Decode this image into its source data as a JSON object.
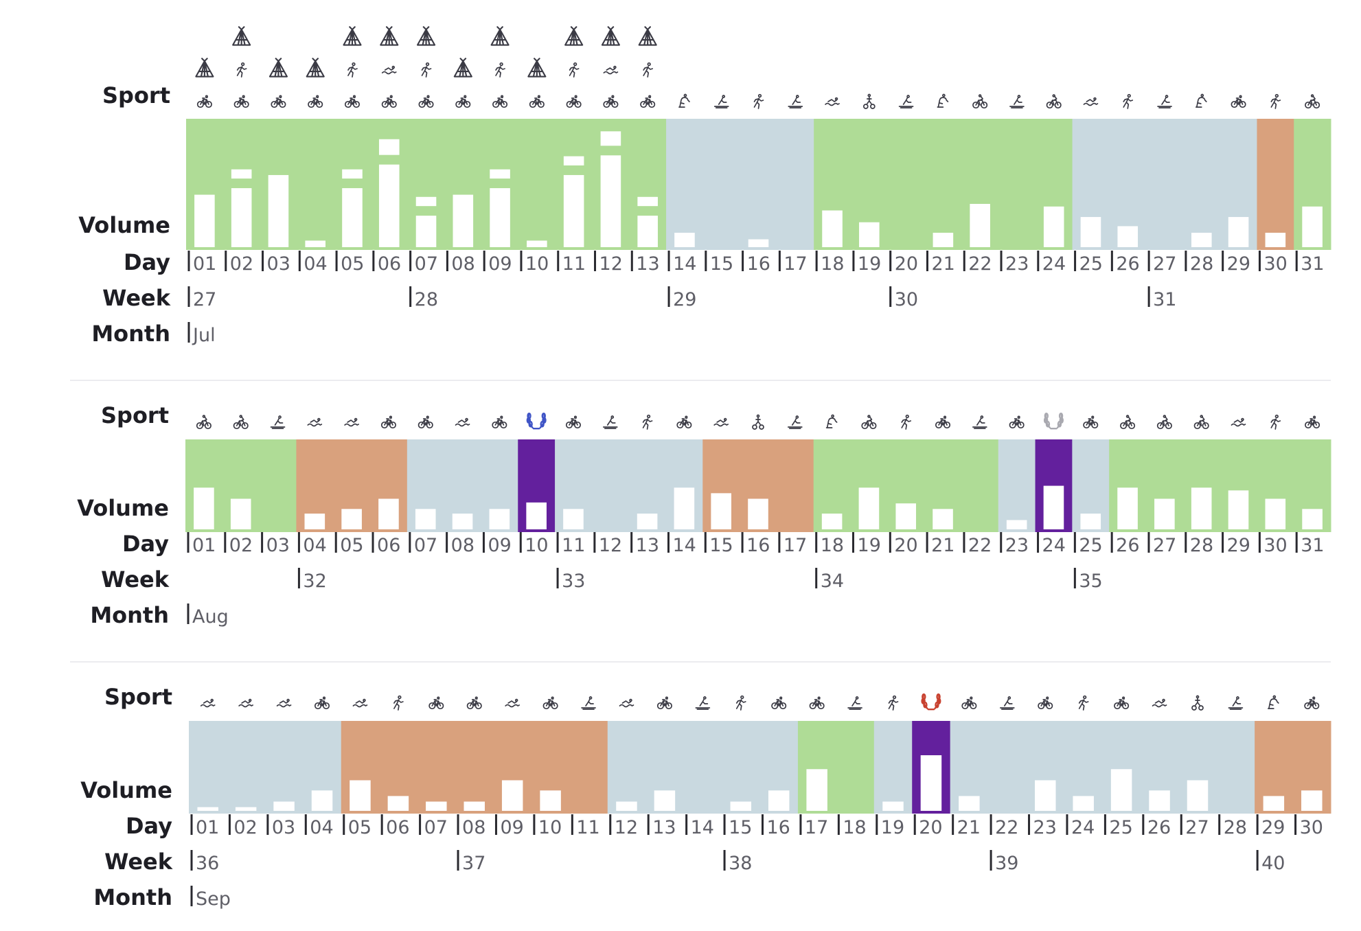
{
  "labels": {
    "sport": "Sport",
    "volume": "Volume",
    "day": "Day",
    "week": "Week",
    "month": "Month"
  },
  "colors": {
    "green": "#afdc96",
    "blue": "#c9d9e0",
    "orange": "#d9a17d",
    "purple": "#63209d",
    "bar": "#ffffff",
    "ink": "#1e1e24",
    "tick": "#5e5e66"
  },
  "chart_data": [
    {
      "type": "bar",
      "month": "Jul",
      "days": [
        "01",
        "02",
        "03",
        "04",
        "05",
        "06",
        "07",
        "08",
        "09",
        "10",
        "11",
        "12",
        "13",
        "14",
        "15",
        "16",
        "17",
        "18",
        "19",
        "20",
        "21",
        "22",
        "23",
        "24",
        "25",
        "26",
        "27",
        "28",
        "29",
        "30",
        "31"
      ],
      "weeks": [
        {
          "label": "27",
          "day": 1
        },
        {
          "label": "28",
          "day": 7
        },
        {
          "label": "29",
          "day": 14
        },
        {
          "label": "30",
          "day": 20
        },
        {
          "label": "31",
          "day": 27
        }
      ],
      "phases": [
        {
          "start": 1,
          "end": 13,
          "color": "green"
        },
        {
          "start": 14,
          "end": 17,
          "color": "blue"
        },
        {
          "start": 18,
          "end": 24,
          "color": "green"
        },
        {
          "start": 25,
          "end": 29,
          "color": "blue"
        },
        {
          "start": 30,
          "end": 30,
          "color": "orange"
        },
        {
          "start": 31,
          "end": 31,
          "color": "green"
        }
      ],
      "highlight_days": [],
      "sports": [
        [
          "bike-icon",
          "camp-icon"
        ],
        [
          "bike-icon",
          "run-icon",
          "camp-icon"
        ],
        [
          "bike-icon",
          "camp-icon"
        ],
        [
          "bike-icon",
          "camp-icon"
        ],
        [
          "bike-icon",
          "run-icon",
          "camp-icon"
        ],
        [
          "bike-icon",
          "swim-icon",
          "camp-icon"
        ],
        [
          "bike-icon",
          "run-icon",
          "camp-icon"
        ],
        [
          "bike-icon",
          "camp-icon"
        ],
        [
          "bike-icon",
          "run-icon",
          "camp-icon"
        ],
        [
          "bike-icon",
          "camp-icon"
        ],
        [
          "bike-icon",
          "run-icon",
          "camp-icon"
        ],
        [
          "bike-icon",
          "swim-icon",
          "camp-icon"
        ],
        [
          "bike-icon",
          "run-icon",
          "camp-icon"
        ],
        [
          "strength-icon"
        ],
        [
          "rowing-icon"
        ],
        [
          "run-icon"
        ],
        [
          "rowing-icon"
        ],
        [
          "swim-icon"
        ],
        [
          "walk-icon"
        ],
        [
          "rowing-icon"
        ],
        [
          "strength-icon"
        ],
        [
          "mtb-icon"
        ],
        [
          "rowing-icon"
        ],
        [
          "mtb-icon"
        ],
        [
          "swim-icon"
        ],
        [
          "run-icon"
        ],
        [
          "rowing-icon"
        ],
        [
          "strength-icon"
        ],
        [
          "bike-icon"
        ],
        [
          "run-icon"
        ],
        [
          "mtb-icon"
        ]
      ],
      "values": [
        [
          0.4
        ],
        [
          0.45,
          0.07
        ],
        [
          0.55
        ],
        [
          0.05
        ],
        [
          0.45,
          0.07
        ],
        [
          0.63,
          0.12
        ],
        [
          0.24,
          0.07
        ],
        [
          0.4
        ],
        [
          0.45,
          0.07
        ],
        [
          0.05
        ],
        [
          0.55,
          0.07
        ],
        [
          0.7,
          0.11
        ],
        [
          0.24,
          0.07
        ],
        [
          0.11
        ],
        [
          0
        ],
        [
          0.06
        ],
        [
          0
        ],
        [
          0.28
        ],
        [
          0.19
        ],
        [
          0
        ],
        [
          0.11
        ],
        [
          0.33
        ],
        [
          0
        ],
        [
          0.31
        ],
        [
          0.23
        ],
        [
          0.16
        ],
        [
          0
        ],
        [
          0.11
        ],
        [
          0.23
        ],
        [
          0.11
        ],
        [
          0.31
        ]
      ]
    },
    {
      "type": "bar",
      "month": "Aug",
      "days": [
        "01",
        "02",
        "03",
        "04",
        "05",
        "06",
        "07",
        "08",
        "09",
        "10",
        "11",
        "12",
        "13",
        "14",
        "15",
        "16",
        "17",
        "18",
        "19",
        "20",
        "21",
        "22",
        "23",
        "24",
        "25",
        "26",
        "27",
        "28",
        "29",
        "30",
        "31"
      ],
      "weeks": [
        {
          "label": "32",
          "day": 4
        },
        {
          "label": "33",
          "day": 11
        },
        {
          "label": "34",
          "day": 18
        },
        {
          "label": "35",
          "day": 25
        }
      ],
      "phases": [
        {
          "start": 1,
          "end": 3,
          "color": "green"
        },
        {
          "start": 4,
          "end": 6,
          "color": "orange"
        },
        {
          "start": 7,
          "end": 9,
          "color": "blue"
        },
        {
          "start": 10,
          "end": 10,
          "color": "purple"
        },
        {
          "start": 11,
          "end": 14,
          "color": "blue"
        },
        {
          "start": 15,
          "end": 17,
          "color": "orange"
        },
        {
          "start": 18,
          "end": 22,
          "color": "green"
        },
        {
          "start": 23,
          "end": 23,
          "color": "blue"
        },
        {
          "start": 24,
          "end": 24,
          "color": "purple"
        },
        {
          "start": 25,
          "end": 25,
          "color": "blue"
        },
        {
          "start": 26,
          "end": 31,
          "color": "green"
        }
      ],
      "highlight_days": [
        10,
        24
      ],
      "sports": [
        [
          "mtb-icon"
        ],
        [
          "mtb-icon"
        ],
        [
          "rowing-icon"
        ],
        [
          "swim-icon"
        ],
        [
          "swim-icon"
        ],
        [
          "bike-icon"
        ],
        [
          "bike-icon"
        ],
        [
          "swim-icon"
        ],
        [
          "bike-icon"
        ],
        [
          "laurel-gold-icon"
        ],
        [
          "bike-icon"
        ],
        [
          "rowing-icon"
        ],
        [
          "run-icon"
        ],
        [
          "bike-icon"
        ],
        [
          "swim-icon"
        ],
        [
          "walk-icon"
        ],
        [
          "rowing-icon"
        ],
        [
          "strength-icon"
        ],
        [
          "mtb-icon"
        ],
        [
          "run-icon"
        ],
        [
          "bike-icon"
        ],
        [
          "rowing-icon"
        ],
        [
          "bike-icon"
        ],
        [
          "laurel-silver-icon"
        ],
        [
          "bike-icon"
        ],
        [
          "mtb-icon"
        ],
        [
          "mtb-icon"
        ],
        [
          "mtb-icon"
        ],
        [
          "swim-icon"
        ],
        [
          "run-icon"
        ],
        [
          "bike-icon"
        ]
      ],
      "values": [
        [
          0.45
        ],
        [
          0.33
        ],
        [
          0
        ],
        [
          0.17
        ],
        [
          0.22
        ],
        [
          0.33
        ],
        [
          0.22
        ],
        [
          0.17
        ],
        [
          0.22
        ],
        [
          0.29
        ],
        [
          0.22
        ],
        [
          0
        ],
        [
          0.17
        ],
        [
          0.45
        ],
        [
          0.39
        ],
        [
          0.33
        ],
        [
          0
        ],
        [
          0.17
        ],
        [
          0.45
        ],
        [
          0.28
        ],
        [
          0.22
        ],
        [
          0
        ],
        [
          0.1
        ],
        [
          0.47
        ],
        [
          0.17
        ],
        [
          0.45
        ],
        [
          0.33
        ],
        [
          0.45
        ],
        [
          0.42
        ],
        [
          0.33
        ],
        [
          0.22
        ]
      ]
    },
    {
      "type": "bar",
      "month": "Sep",
      "days": [
        "01",
        "02",
        "03",
        "04",
        "05",
        "06",
        "07",
        "08",
        "09",
        "10",
        "11",
        "12",
        "13",
        "14",
        "15",
        "16",
        "17",
        "18",
        "19",
        "20",
        "21",
        "22",
        "23",
        "24",
        "25",
        "26",
        "27",
        "28",
        "29",
        "30"
      ],
      "weeks": [
        {
          "label": "36",
          "day": 1
        },
        {
          "label": "37",
          "day": 8
        },
        {
          "label": "38",
          "day": 15
        },
        {
          "label": "39",
          "day": 22
        },
        {
          "label": "40",
          "day": 29
        }
      ],
      "phases": [
        {
          "start": 1,
          "end": 4,
          "color": "blue"
        },
        {
          "start": 5,
          "end": 11,
          "color": "orange"
        },
        {
          "start": 12,
          "end": 16,
          "color": "blue"
        },
        {
          "start": 17,
          "end": 18,
          "color": "green"
        },
        {
          "start": 19,
          "end": 19,
          "color": "blue"
        },
        {
          "start": 20,
          "end": 20,
          "color": "purple"
        },
        {
          "start": 21,
          "end": 28,
          "color": "blue"
        },
        {
          "start": 29,
          "end": 30,
          "color": "orange"
        }
      ],
      "highlight_days": [
        20
      ],
      "sports": [
        [
          "swim-icon"
        ],
        [
          "swim-icon"
        ],
        [
          "swim-icon"
        ],
        [
          "bike-icon"
        ],
        [
          "swim-icon"
        ],
        [
          "run-icon"
        ],
        [
          "bike-icon"
        ],
        [
          "bike-icon"
        ],
        [
          "swim-icon"
        ],
        [
          "bike-icon"
        ],
        [
          "rowing-icon"
        ],
        [
          "swim-icon"
        ],
        [
          "bike-icon"
        ],
        [
          "rowing-icon"
        ],
        [
          "run-icon"
        ],
        [
          "bike-icon"
        ],
        [
          "bike-icon"
        ],
        [
          "rowing-icon"
        ],
        [
          "run-icon"
        ],
        [
          "laurel-bronze-icon"
        ],
        [
          "bike-icon"
        ],
        [
          "rowing-icon"
        ],
        [
          "bike-icon"
        ],
        [
          "run-icon"
        ],
        [
          "bike-icon"
        ],
        [
          "swim-icon"
        ],
        [
          "walk-icon"
        ],
        [
          "rowing-icon"
        ],
        [
          "strength-icon"
        ],
        [
          "bike-icon"
        ]
      ],
      "values": [
        [
          0.04
        ],
        [
          0.04
        ],
        [
          0.1
        ],
        [
          0.22
        ],
        [
          0.33
        ],
        [
          0.16
        ],
        [
          0.1
        ],
        [
          0.1
        ],
        [
          0.33
        ],
        [
          0.22
        ],
        [
          0
        ],
        [
          0.1
        ],
        [
          0.22
        ],
        [
          0
        ],
        [
          0.1
        ],
        [
          0.22
        ],
        [
          0.45
        ],
        [
          0
        ],
        [
          0.1
        ],
        [
          0.6
        ],
        [
          0.16
        ],
        [
          0
        ],
        [
          0.33
        ],
        [
          0.16
        ],
        [
          0.45
        ],
        [
          0.22
        ],
        [
          0.33
        ],
        [
          0
        ],
        [
          0.16
        ],
        [
          0.22
        ]
      ]
    }
  ]
}
